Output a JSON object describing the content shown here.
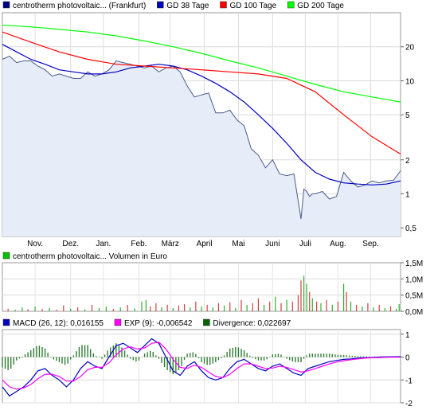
{
  "chart_data": [
    {
      "type": "line",
      "scale": "log",
      "ylim": [
        0.42,
        40
      ],
      "yticks": [
        "0,5",
        "1",
        "2",
        "5",
        "10",
        "20"
      ],
      "ytick_values": [
        0.5,
        1,
        2,
        5,
        10,
        20
      ],
      "months": [
        "Nov.",
        "Dez.",
        "Jan.",
        "Feb.",
        "März",
        "April",
        "Mai",
        "Juni",
        "Juli",
        "Aug.",
        "Sep."
      ],
      "x_range": [
        0,
        280
      ],
      "month_positions": [
        23,
        48,
        71,
        96,
        118,
        142,
        166,
        190,
        213,
        236,
        259
      ],
      "legend": [
        {
          "label": "centrotherm photovoltaic... (Frankfurt)",
          "color": "#000080"
        },
        {
          "label": "GD 38 Tage",
          "color": "#0000c0"
        },
        {
          "label": "GD 100 Tage",
          "color": "#ff0000"
        },
        {
          "label": "GD 200 Tage",
          "color": "#00ff00"
        }
      ],
      "series": [
        {
          "key": "price",
          "color": "#4a5a8a",
          "fill": "#e6edf8",
          "x": [
            0,
            5,
            10,
            15,
            20,
            25,
            30,
            35,
            40,
            45,
            50,
            55,
            60,
            65,
            70,
            75,
            80,
            85,
            90,
            95,
            100,
            105,
            110,
            115,
            120,
            125,
            130,
            135,
            140,
            145,
            150,
            155,
            160,
            165,
            170,
            175,
            180,
            185,
            190,
            195,
            200,
            205,
            210,
            212,
            214,
            216,
            218,
            220,
            225,
            230,
            235,
            240,
            245,
            250,
            255,
            260,
            265,
            270,
            275,
            280
          ],
          "y": [
            15.5,
            16.5,
            14.5,
            15,
            15,
            13.5,
            12.5,
            11,
            11.5,
            11,
            10.5,
            10.5,
            12,
            11,
            11.5,
            12.5,
            15,
            14.5,
            14,
            13.5,
            13,
            13.5,
            12,
            13,
            13.5,
            12,
            9,
            7.2,
            7.5,
            7.8,
            5.2,
            5.2,
            5.5,
            4.5,
            4,
            2.5,
            2.2,
            1.7,
            2.0,
            1.5,
            1.45,
            1.5,
            0.6,
            1.1,
            1.05,
            0.95,
            1.0,
            1.0,
            1.05,
            0.9,
            0.95,
            1.55,
            1.3,
            1.15,
            1.2,
            1.3,
            1.25,
            1.3,
            1.32,
            1.6
          ]
        },
        {
          "key": "gd38",
          "color": "#0000c0",
          "x": [
            0,
            10,
            20,
            30,
            40,
            50,
            60,
            70,
            80,
            90,
            100,
            110,
            120,
            130,
            140,
            150,
            160,
            170,
            180,
            190,
            200,
            210,
            220,
            230,
            240,
            250,
            260,
            270,
            280
          ],
          "y": [
            21,
            18,
            15.5,
            14,
            12.5,
            12,
            11.5,
            11.5,
            12,
            13,
            13.5,
            14,
            13.5,
            12.5,
            11,
            9.5,
            8,
            6.5,
            5,
            3.8,
            2.8,
            2.0,
            1.55,
            1.35,
            1.25,
            1.22,
            1.2,
            1.22,
            1.3
          ]
        },
        {
          "key": "gd100",
          "color": "#ff0000",
          "x": [
            0,
            20,
            40,
            60,
            80,
            100,
            120,
            140,
            160,
            180,
            200,
            220,
            240,
            260,
            280
          ],
          "y": [
            27,
            22,
            18,
            15.5,
            14,
            13.5,
            13,
            12.5,
            12,
            11.5,
            10.5,
            8,
            5,
            3.2,
            2.25
          ]
        },
        {
          "key": "gd200",
          "color": "#00ff00",
          "x": [
            0,
            20,
            40,
            60,
            80,
            100,
            120,
            140,
            160,
            180,
            200,
            220,
            240,
            260,
            280
          ],
          "y": [
            31,
            30,
            28.5,
            27,
            25,
            22.5,
            20,
            17.5,
            15,
            13,
            11,
            9.3,
            8,
            7.2,
            6.5
          ]
        }
      ]
    },
    {
      "type": "bar",
      "ylim": [
        0,
        1.5
      ],
      "yticks": [
        "0,0M",
        "0,5M",
        "1,0M",
        "1,5M"
      ],
      "ytick_values": [
        0,
        0.5,
        1.0,
        1.5
      ],
      "legend": [
        {
          "label": "centrotherm photovoltaic... Volumen in Euro",
          "color": "#00c000"
        }
      ],
      "bars": [
        {
          "x": 4,
          "v": 0.08,
          "c": "#d04040"
        },
        {
          "x": 9,
          "v": 0.05,
          "c": "#30b030"
        },
        {
          "x": 14,
          "v": 0.12,
          "c": "#30b030"
        },
        {
          "x": 18,
          "v": 0.06,
          "c": "#d04040"
        },
        {
          "x": 23,
          "v": 0.15,
          "c": "#30b030"
        },
        {
          "x": 28,
          "v": 0.07,
          "c": "#d04040"
        },
        {
          "x": 33,
          "v": 0.1,
          "c": "#30b030"
        },
        {
          "x": 38,
          "v": 0.05,
          "c": "#d04040"
        },
        {
          "x": 43,
          "v": 0.18,
          "c": "#d04040"
        },
        {
          "x": 48,
          "v": 0.08,
          "c": "#30b030"
        },
        {
          "x": 53,
          "v": 0.12,
          "c": "#d04040"
        },
        {
          "x": 58,
          "v": 0.06,
          "c": "#30b030"
        },
        {
          "x": 63,
          "v": 0.2,
          "c": "#d04040"
        },
        {
          "x": 68,
          "v": 0.1,
          "c": "#30b030"
        },
        {
          "x": 73,
          "v": 0.15,
          "c": "#30b030"
        },
        {
          "x": 78,
          "v": 0.07,
          "c": "#d04040"
        },
        {
          "x": 83,
          "v": 0.12,
          "c": "#30b030"
        },
        {
          "x": 88,
          "v": 0.2,
          "c": "#d04040"
        },
        {
          "x": 93,
          "v": 0.09,
          "c": "#30b030"
        },
        {
          "x": 98,
          "v": 0.3,
          "c": "#30b030"
        },
        {
          "x": 101,
          "v": 0.35,
          "c": "#30b030"
        },
        {
          "x": 104,
          "v": 0.15,
          "c": "#d04040"
        },
        {
          "x": 108,
          "v": 0.25,
          "c": "#d04040"
        },
        {
          "x": 112,
          "v": 0.12,
          "c": "#30b030"
        },
        {
          "x": 116,
          "v": 0.2,
          "c": "#d04040"
        },
        {
          "x": 120,
          "v": 0.1,
          "c": "#30b030"
        },
        {
          "x": 124,
          "v": 0.18,
          "c": "#d04040"
        },
        {
          "x": 128,
          "v": 0.22,
          "c": "#d04040"
        },
        {
          "x": 132,
          "v": 0.12,
          "c": "#30b030"
        },
        {
          "x": 136,
          "v": 0.3,
          "c": "#d04040"
        },
        {
          "x": 140,
          "v": 0.15,
          "c": "#30b030"
        },
        {
          "x": 144,
          "v": 0.2,
          "c": "#d04040"
        },
        {
          "x": 148,
          "v": 0.12,
          "c": "#30b030"
        },
        {
          "x": 152,
          "v": 0.25,
          "c": "#d04040"
        },
        {
          "x": 156,
          "v": 0.18,
          "c": "#30b030"
        },
        {
          "x": 160,
          "v": 0.28,
          "c": "#d04040"
        },
        {
          "x": 164,
          "v": 0.1,
          "c": "#30b030"
        },
        {
          "x": 168,
          "v": 0.35,
          "c": "#d04040"
        },
        {
          "x": 172,
          "v": 0.2,
          "c": "#30b030"
        },
        {
          "x": 176,
          "v": 0.25,
          "c": "#d04040"
        },
        {
          "x": 180,
          "v": 0.4,
          "c": "#d04040"
        },
        {
          "x": 184,
          "v": 0.2,
          "c": "#30b030"
        },
        {
          "x": 188,
          "v": 0.3,
          "c": "#d04040"
        },
        {
          "x": 192,
          "v": 0.45,
          "c": "#30b030"
        },
        {
          "x": 196,
          "v": 0.25,
          "c": "#d04040"
        },
        {
          "x": 200,
          "v": 0.35,
          "c": "#30b030"
        },
        {
          "x": 204,
          "v": 0.3,
          "c": "#d04040"
        },
        {
          "x": 208,
          "v": 0.5,
          "c": "#d04040"
        },
        {
          "x": 210,
          "v": 0.95,
          "c": "#d04040"
        },
        {
          "x": 212,
          "v": 1.1,
          "c": "#30b030"
        },
        {
          "x": 214,
          "v": 0.85,
          "c": "#30b030"
        },
        {
          "x": 216,
          "v": 0.6,
          "c": "#d04040"
        },
        {
          "x": 218,
          "v": 0.4,
          "c": "#30b030"
        },
        {
          "x": 221,
          "v": 0.3,
          "c": "#d04040"
        },
        {
          "x": 224,
          "v": 0.25,
          "c": "#30b030"
        },
        {
          "x": 228,
          "v": 0.35,
          "c": "#d04040"
        },
        {
          "x": 232,
          "v": 0.2,
          "c": "#30b030"
        },
        {
          "x": 236,
          "v": 0.3,
          "c": "#d04040"
        },
        {
          "x": 240,
          "v": 0.85,
          "c": "#30b030"
        },
        {
          "x": 242,
          "v": 0.6,
          "c": "#d04040"
        },
        {
          "x": 245,
          "v": 0.3,
          "c": "#30b030"
        },
        {
          "x": 249,
          "v": 0.2,
          "c": "#d04040"
        },
        {
          "x": 253,
          "v": 0.15,
          "c": "#30b030"
        },
        {
          "x": 257,
          "v": 0.25,
          "c": "#d04040"
        },
        {
          "x": 261,
          "v": 0.12,
          "c": "#30b030"
        },
        {
          "x": 265,
          "v": 0.2,
          "c": "#d04040"
        },
        {
          "x": 269,
          "v": 0.1,
          "c": "#30b030"
        },
        {
          "x": 273,
          "v": 0.15,
          "c": "#d04040"
        },
        {
          "x": 277,
          "v": 0.08,
          "c": "#30b030"
        },
        {
          "x": 279,
          "v": 0.22,
          "c": "#30b030"
        }
      ]
    },
    {
      "type": "line",
      "ylim": [
        -2,
        1.2
      ],
      "yticks": [
        "-2",
        "-1",
        "0",
        "1"
      ],
      "ytick_values": [
        -2,
        -1,
        0,
        1
      ],
      "legend": [
        {
          "label": "MACD (26, 12): 0,016155",
          "color": "#0000c0"
        },
        {
          "label": "EXP (9): -0,006542",
          "color": "#ff00ff"
        },
        {
          "label": "Divergence: 0,022697",
          "color": "#006400"
        }
      ],
      "series": [
        {
          "key": "macd",
          "color": "#0000c0",
          "x": [
            0,
            5,
            10,
            15,
            20,
            25,
            30,
            35,
            40,
            45,
            50,
            55,
            60,
            65,
            70,
            75,
            80,
            85,
            90,
            95,
            100,
            105,
            110,
            115,
            120,
            125,
            130,
            135,
            140,
            145,
            150,
            155,
            160,
            165,
            170,
            175,
            180,
            185,
            190,
            195,
            200,
            205,
            210,
            215,
            220,
            225,
            230,
            235,
            240,
            245,
            250,
            255,
            260,
            265,
            270,
            275,
            280
          ],
          "y": [
            -1.3,
            -1.7,
            -1.5,
            -1.3,
            -1.0,
            -0.6,
            -0.5,
            -0.8,
            -1.0,
            -1.3,
            -1.0,
            -0.5,
            -0.2,
            -0.4,
            -0.5,
            0.0,
            0.5,
            0.6,
            0.4,
            0.2,
            0.5,
            0.8,
            0.6,
            0.0,
            -0.6,
            -0.8,
            -0.4,
            -0.2,
            -0.6,
            -0.9,
            -1.0,
            -0.9,
            -0.5,
            -0.2,
            -0.1,
            -0.3,
            -0.5,
            -0.6,
            -0.4,
            -0.3,
            -0.5,
            -0.7,
            -0.8,
            -0.5,
            -0.4,
            -0.3,
            -0.2,
            -0.15,
            -0.1,
            -0.08,
            -0.05,
            -0.03,
            -0.02,
            0.0,
            0.01,
            0.015,
            0.016
          ]
        },
        {
          "key": "exp",
          "color": "#ff00ff",
          "x": [
            0,
            5,
            10,
            15,
            20,
            25,
            30,
            35,
            40,
            45,
            50,
            55,
            60,
            65,
            70,
            75,
            80,
            85,
            90,
            95,
            100,
            105,
            110,
            115,
            120,
            125,
            130,
            135,
            140,
            145,
            150,
            155,
            160,
            165,
            170,
            175,
            180,
            185,
            190,
            195,
            200,
            205,
            210,
            215,
            220,
            225,
            230,
            235,
            240,
            245,
            250,
            255,
            260,
            265,
            270,
            275,
            280
          ],
          "y": [
            -1.0,
            -1.3,
            -1.4,
            -1.35,
            -1.2,
            -0.95,
            -0.75,
            -0.75,
            -0.85,
            -1.05,
            -1.05,
            -0.85,
            -0.55,
            -0.45,
            -0.45,
            -0.25,
            0.1,
            0.35,
            0.45,
            0.35,
            0.4,
            0.6,
            0.65,
            0.35,
            -0.1,
            -0.45,
            -0.5,
            -0.35,
            -0.45,
            -0.65,
            -0.85,
            -0.9,
            -0.75,
            -0.5,
            -0.3,
            -0.3,
            -0.4,
            -0.5,
            -0.48,
            -0.4,
            -0.45,
            -0.55,
            -0.65,
            -0.6,
            -0.5,
            -0.4,
            -0.3,
            -0.22,
            -0.16,
            -0.12,
            -0.08,
            -0.05,
            -0.03,
            -0.02,
            -0.01,
            -0.008,
            -0.0065
          ]
        }
      ]
    }
  ]
}
